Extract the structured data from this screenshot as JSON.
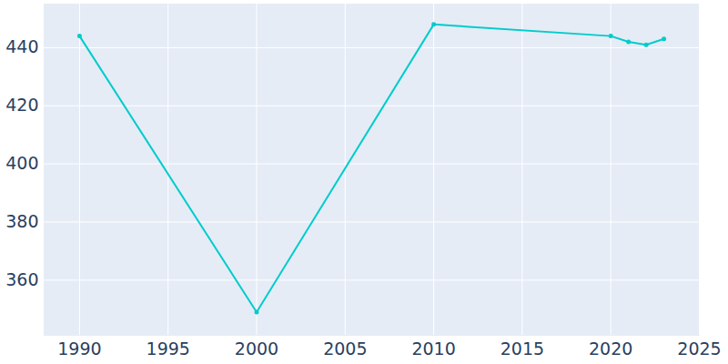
{
  "chart_data": {
    "type": "line",
    "x": [
      1990,
      2000,
      2010,
      2020,
      2021,
      2022,
      2023
    ],
    "values": [
      444,
      349,
      448,
      444,
      442,
      441,
      443
    ],
    "color": "#00cccc",
    "marker": "circle",
    "line_style": "solid",
    "xlim": [
      1988,
      2025
    ],
    "xticks": [
      1990,
      1995,
      2000,
      2005,
      2010,
      2015,
      2020,
      2025
    ],
    "ylim": [
      341,
      455
    ],
    "yticks": [
      360,
      380,
      400,
      420,
      440
    ],
    "grid": true
  }
}
